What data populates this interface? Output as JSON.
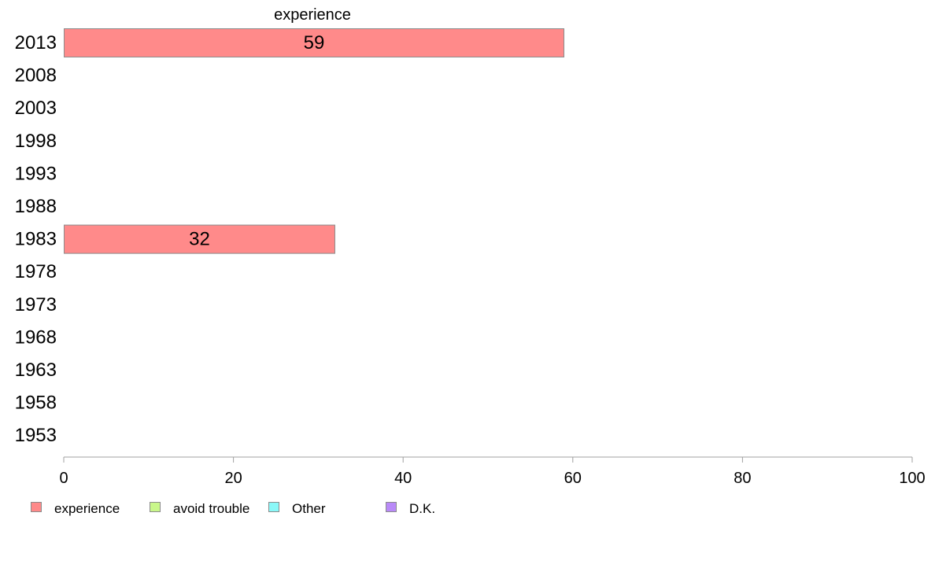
{
  "chart_data": {
    "type": "bar",
    "orientation": "horizontal",
    "stacked": true,
    "categories": [
      "2013",
      "2008",
      "2003",
      "1998",
      "1993",
      "1988",
      "1983",
      "1978",
      "1973",
      "1968",
      "1963",
      "1958",
      "1953"
    ],
    "series": [
      {
        "name": "experience",
        "color": "#ff8a8a",
        "values": [
          59,
          null,
          null,
          null,
          null,
          null,
          32,
          null,
          null,
          null,
          null,
          null,
          null
        ]
      },
      {
        "name": "avoid trouble",
        "color": "#c9f78a",
        "values": [
          null,
          null,
          null,
          null,
          null,
          null,
          null,
          null,
          null,
          null,
          null,
          null,
          null
        ]
      },
      {
        "name": "Other",
        "color": "#8af8f8",
        "values": [
          null,
          null,
          null,
          null,
          null,
          null,
          null,
          null,
          null,
          null,
          null,
          null,
          null
        ]
      },
      {
        "name": "D.K.",
        "color": "#b98af8",
        "values": [
          null,
          null,
          null,
          null,
          null,
          null,
          null,
          null,
          null,
          null,
          null,
          null,
          null
        ]
      }
    ],
    "series_label": "experience",
    "xlim": [
      0,
      100
    ],
    "xticks": [
      0,
      20,
      40,
      60,
      80,
      100
    ],
    "legend_position": "bottom",
    "grid": false
  }
}
